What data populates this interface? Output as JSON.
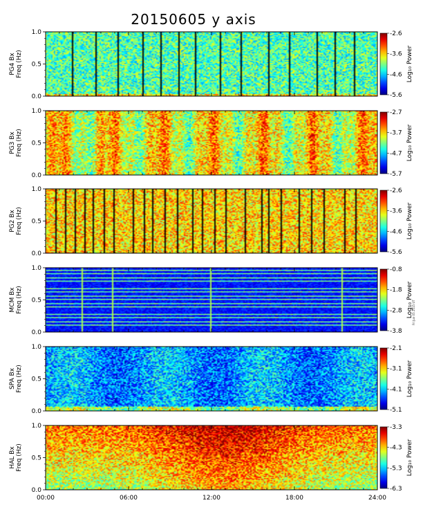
{
  "chart_data": {
    "type": "heatmap",
    "title": "20150605 y axis",
    "side_note": "Fri Jun 05 2015 UT",
    "x_ticks": [
      "00:00",
      "06:00",
      "12:00",
      "18:00",
      "24:00"
    ],
    "xlim": [
      0,
      24
    ],
    "panels": [
      {
        "station": "PG4",
        "ylabel": [
          "PG4  Bx",
          "Freq (Hz)"
        ],
        "y_ticks": [
          "0.0",
          "0.5",
          "1.0"
        ],
        "ylim": [
          0,
          1
        ],
        "colorbar_label": "Log₁₀ Power",
        "colorbar_ticks": [
          "-2.6",
          "-3.6",
          "-4.6",
          "-5.6"
        ],
        "color_range": [
          -5.6,
          -2.6
        ],
        "base_level": 0.45,
        "data_gaps_hours": [
          1.9,
          3.6,
          5.2,
          7.0,
          8.3,
          9.6,
          10.8,
          12.6,
          14.1,
          16.1,
          17.6,
          19.6,
          20.9,
          22.3
        ]
      },
      {
        "station": "PG3",
        "ylabel": [
          "PG3  Bx",
          "Freq (Hz)"
        ],
        "y_ticks": [
          "0.0",
          "0.5",
          "1.0"
        ],
        "ylim": [
          0,
          1
        ],
        "colorbar_label": "Log₁₀ Power",
        "colorbar_ticks": [
          "-2.7",
          "-3.7",
          "-4.7",
          "-5.7"
        ],
        "color_range": [
          -5.7,
          -2.7
        ],
        "base_level": 0.62,
        "data_gaps_hours": []
      },
      {
        "station": "PG2",
        "ylabel": [
          "PG2  Bx",
          "Freq (Hz)"
        ],
        "y_ticks": [
          "0.0",
          "0.5",
          "1.0"
        ],
        "ylim": [
          0,
          1
        ],
        "colorbar_label": "Log₁₀ Power",
        "colorbar_ticks": [
          "-2.6",
          "-3.6",
          "-4.6",
          "-5.6"
        ],
        "color_range": [
          -5.6,
          -2.6
        ],
        "base_level": 0.66,
        "data_gaps_hours": [
          0.7,
          1.4,
          2.1,
          2.8,
          3.4,
          4.2,
          4.9,
          6.3,
          7.1,
          7.7,
          8.6,
          9.5,
          10.6,
          11.3,
          12.2,
          13.0,
          14.4,
          15.6,
          16.1,
          17.0,
          18.3,
          19.2,
          20.1,
          21.6,
          22.4
        ]
      },
      {
        "station": "MCM",
        "ylabel": [
          "MCM  Bx",
          "Freq (Hz)"
        ],
        "y_ticks": [
          "0.0",
          "0.5",
          "1.0"
        ],
        "ylim": [
          0,
          1
        ],
        "colorbar_label": "Log₁₀ Power",
        "colorbar_ticks": [
          "-0.8",
          "-1.8",
          "-2.8",
          "-3.8"
        ],
        "color_range": [
          -3.8,
          -0.8
        ],
        "base_level": 0.12,
        "harmonic_step_hz": 0.057,
        "spikes_hours": [
          2.6,
          4.8,
          11.9,
          21.4
        ]
      },
      {
        "station": "SPA",
        "ylabel": [
          "SPA  Bx",
          "Freq (Hz)"
        ],
        "y_ticks": [
          "0.0",
          "0.5",
          "1.0"
        ],
        "ylim": [
          0,
          1
        ],
        "colorbar_label": "Log₁₀ Power",
        "colorbar_ticks": [
          "-2.1",
          "-3.1",
          "-4.1",
          "-5.1"
        ],
        "color_range": [
          -5.1,
          -2.1
        ],
        "base_level": 0.28,
        "data_gaps_hours": []
      },
      {
        "station": "HAL",
        "ylabel": [
          "HAL  Bx",
          "Freq (Hz)"
        ],
        "y_ticks": [
          "0.0",
          "0.5",
          "1.0"
        ],
        "ylim": [
          0,
          1
        ],
        "colorbar_label": "Log₁₀ Power",
        "colorbar_ticks": [
          "-3.3",
          "-4.3",
          "-5.3",
          "-6.3"
        ],
        "color_range": [
          -6.3,
          -3.3
        ],
        "base_level": 0.62,
        "data_gaps_hours": []
      }
    ]
  }
}
